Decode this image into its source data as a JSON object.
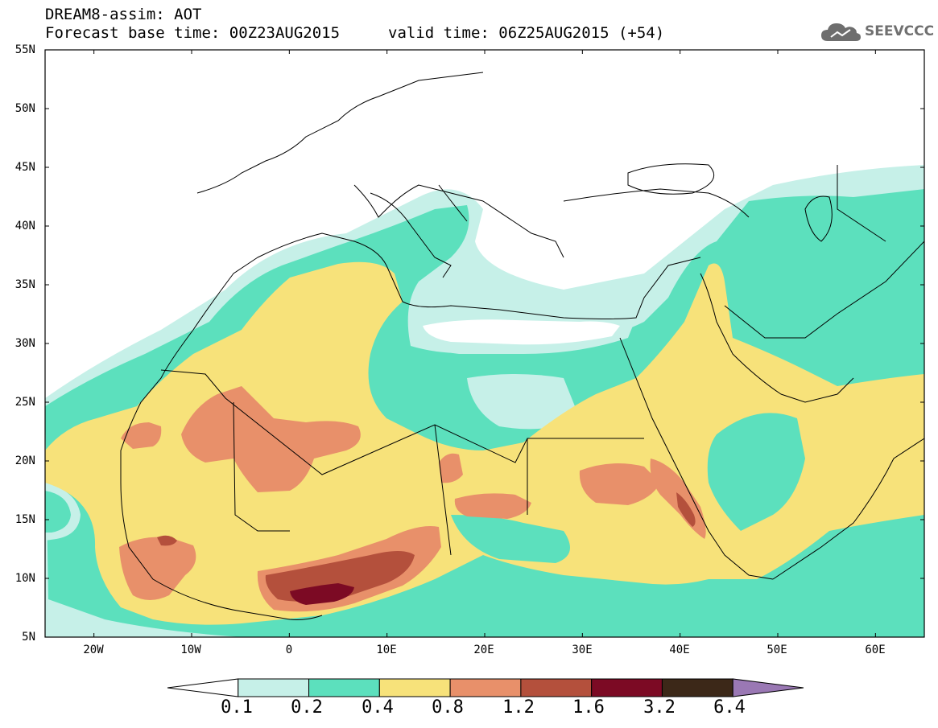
{
  "header": {
    "title_line1": "DREAM8-assim: AOT",
    "title_line2": "Forecast base time: 00Z23AUG2015",
    "valid_time": "valid time: 06Z25AUG2015 (+54)",
    "logo_text": "SEEVCCC",
    "logo_icon": "cloud-icon"
  },
  "axes": {
    "lat_labels": [
      "55N",
      "50N",
      "45N",
      "40N",
      "35N",
      "30N",
      "25N",
      "20N",
      "15N",
      "10N",
      "5N"
    ],
    "lon_labels": [
      "20W",
      "10W",
      "0",
      "10E",
      "20E",
      "30E",
      "40E",
      "50E",
      "60E"
    ],
    "lat_range": [
      5,
      55
    ],
    "lon_range": [
      -25,
      65
    ]
  },
  "colorbar": {
    "labels": [
      "0.1",
      "0.2",
      "0.4",
      "0.8",
      "1.2",
      "1.6",
      "3.2",
      "6.4"
    ],
    "colors": [
      "#ffffff",
      "#c6f0e8",
      "#5ce0bd",
      "#f7e27a",
      "#e8906a",
      "#b4503c",
      "#7c0a24",
      "#3c2818",
      "#9a78b4"
    ]
  },
  "legend_colors": {
    "c02": "#c6f0e8",
    "c04": "#5ce0bd",
    "c08": "#f7e27a",
    "c12": "#e8906a",
    "c16": "#b4503c",
    "c32": "#7c0a24"
  }
}
